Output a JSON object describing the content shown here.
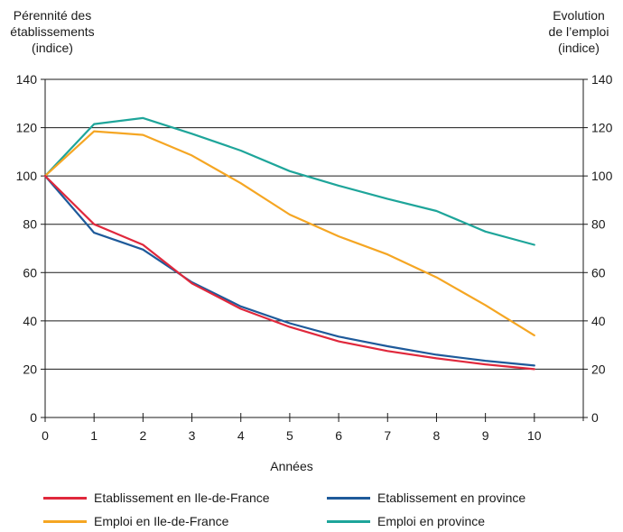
{
  "chart_data": {
    "type": "line",
    "left_axis_title": [
      "Pérennité des",
      "établissements",
      "(indice)"
    ],
    "right_axis_title": [
      "Evolution",
      "de l’emploi",
      "(indice)"
    ],
    "xlabel": "Années",
    "x": [
      0,
      1,
      2,
      3,
      4,
      5,
      6,
      7,
      8,
      9,
      10
    ],
    "xticks": [
      "0",
      "1",
      "2",
      "3",
      "4",
      "5",
      "6",
      "7",
      "8",
      "9",
      "10"
    ],
    "xlim": [
      0,
      11
    ],
    "ylim": [
      0,
      140
    ],
    "yticks": [
      "0",
      "20",
      "40",
      "60",
      "80",
      "100",
      "120",
      "140"
    ],
    "grid": "horizontal",
    "series": [
      {
        "name": "Etablissement en Ile-de-France",
        "color": "#e0283c",
        "values": [
          100,
          80,
          71.5,
          55.5,
          45,
          37.5,
          31.5,
          27.5,
          24.5,
          22,
          20
        ]
      },
      {
        "name": "Etablissement en province",
        "color": "#1e5a9a",
        "values": [
          100,
          76.5,
          69.5,
          56,
          46,
          39,
          33.5,
          29.5,
          26,
          23.5,
          21.5
        ]
      },
      {
        "name": "Emploi en Ile-de-France",
        "color": "#f5a623",
        "values": [
          100,
          118.5,
          117,
          108.5,
          97,
          84,
          75,
          67.5,
          58,
          46.5,
          34
        ]
      },
      {
        "name": "Emploi en province",
        "color": "#1ea59a",
        "values": [
          100,
          121.5,
          124,
          117.5,
          110.5,
          102,
          96,
          90.5,
          85.5,
          77,
          71.5
        ]
      }
    ]
  }
}
